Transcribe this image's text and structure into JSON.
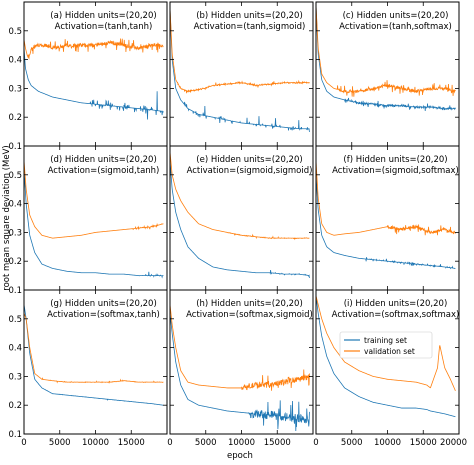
{
  "chart_data": {
    "type": "line",
    "xlabel": "epoch",
    "ylabel": "root mean square deviation (MeV)",
    "xlim": [
      0,
      20000
    ],
    "ylim": [
      0.1,
      0.6
    ],
    "x_ticks": [
      "0",
      "5000",
      "10000",
      "15000",
      "20000"
    ],
    "x_tick_values": [
      0,
      5000,
      10000,
      15000,
      20000
    ],
    "y_ticks": [
      "0.1",
      "0.2",
      "0.3",
      "0.4",
      "0.5"
    ],
    "y_tick_values": [
      0.1,
      0.2,
      0.3,
      0.4,
      0.5
    ],
    "grid": false,
    "colors": {
      "training": "#1f77b4",
      "validation": "#ff7f0e"
    },
    "legend": {
      "placement": "inside lower-right of panel (i)",
      "entries": [
        "training set",
        "validation set"
      ]
    },
    "panels": [
      {
        "label_line1": "(a) Hidden units=(20,20)",
        "label_line2": "Activation=(tanh,tanh)",
        "series": [
          {
            "name": "training set",
            "x": [
              0,
              200,
              600,
              1000,
              2000,
              3000,
              4000,
              5000,
              6000,
              7000,
              8000,
              10000,
              12000,
              14000,
              16000,
              18000,
              19500
            ],
            "y": [
              0.44,
              0.37,
              0.33,
              0.31,
              0.29,
              0.28,
              0.27,
              0.265,
              0.26,
              0.255,
              0.25,
              0.245,
              0.24,
              0.235,
              0.23,
              0.225,
              0.22
            ],
            "noise": {
              "amp": 0.07,
              "from": 9000,
              "density": 0.3
            }
          },
          {
            "name": "validation set",
            "x": [
              0,
              200,
              600,
              1000,
              2000,
              3000,
              4000,
              5000,
              6000,
              8000,
              10000,
              12000,
              14000,
              16000,
              18000,
              19500
            ],
            "y": [
              0.47,
              0.44,
              0.4,
              0.44,
              0.45,
              0.45,
              0.44,
              0.44,
              0.45,
              0.45,
              0.45,
              0.46,
              0.45,
              0.44,
              0.45,
              0.45
            ],
            "noise": {
              "amp": 0.025,
              "from": 500,
              "density": 1.0
            }
          }
        ]
      },
      {
        "label_line1": "(b) Hidden units=(20,20)",
        "label_line2": "Activation=(tanh,sigmoid)",
        "series": [
          {
            "name": "training set",
            "x": [
              0,
              300,
              800,
              1500,
              2500,
              4000,
              6000,
              8000,
              10000,
              12000,
              14000,
              16000,
              18000,
              19500
            ],
            "y": [
              0.58,
              0.4,
              0.3,
              0.26,
              0.23,
              0.21,
              0.2,
              0.19,
              0.18,
              0.175,
              0.17,
              0.165,
              0.16,
              0.16
            ],
            "noise": {
              "amp": 0.04,
              "from": 2000,
              "density": 0.15
            }
          },
          {
            "name": "validation set",
            "x": [
              0,
              300,
              800,
              1500,
              2500,
              4000,
              6000,
              8000,
              10000,
              12000,
              14000,
              16000,
              18000,
              19500
            ],
            "y": [
              0.58,
              0.42,
              0.33,
              0.3,
              0.29,
              0.295,
              0.31,
              0.315,
              0.32,
              0.31,
              0.315,
              0.32,
              0.32,
              0.32
            ],
            "noise": {
              "amp": 0.01,
              "from": 1000,
              "density": 0.6
            }
          }
        ]
      },
      {
        "label_line1": "(c) Hidden units=(20,20)",
        "label_line2": "Activation=(tanh,softmax)",
        "series": [
          {
            "name": "training set",
            "x": [
              0,
              300,
              800,
              1500,
              2500,
              4000,
              6000,
              8000,
              10000,
              12000,
              14000,
              16000,
              18000,
              19500
            ],
            "y": [
              0.59,
              0.42,
              0.33,
              0.29,
              0.27,
              0.26,
              0.25,
              0.245,
              0.24,
              0.24,
              0.235,
              0.235,
              0.23,
              0.23
            ],
            "noise": {
              "amp": 0.015,
              "from": 4000,
              "density": 0.8
            }
          },
          {
            "name": "validation set",
            "x": [
              0,
              300,
              800,
              1500,
              2500,
              4000,
              6000,
              8000,
              10000,
              12000,
              14000,
              16000,
              18000,
              19500
            ],
            "y": [
              0.59,
              0.44,
              0.35,
              0.32,
              0.3,
              0.29,
              0.29,
              0.3,
              0.31,
              0.3,
              0.29,
              0.3,
              0.3,
              0.29
            ],
            "noise": {
              "amp": 0.02,
              "from": 3000,
              "density": 1.0
            }
          }
        ]
      },
      {
        "label_line1": "(d) Hidden units=(20,20)",
        "label_line2": "Activation=(sigmoid,tanh)",
        "series": [
          {
            "name": "training set",
            "x": [
              0,
              300,
              800,
              1500,
              2500,
              4000,
              6000,
              8000,
              10000,
              12000,
              14000,
              16000,
              18000,
              19500
            ],
            "y": [
              0.52,
              0.4,
              0.29,
              0.23,
              0.19,
              0.175,
              0.165,
              0.16,
              0.16,
              0.155,
              0.155,
              0.15,
              0.15,
              0.15
            ],
            "noise": {
              "amp": 0.015,
              "from": 16000,
              "density": 0.3
            }
          },
          {
            "name": "validation set",
            "x": [
              0,
              300,
              800,
              1500,
              2500,
              4000,
              6000,
              8000,
              10000,
              12000,
              14000,
              16000,
              18000,
              19500
            ],
            "y": [
              0.55,
              0.45,
              0.36,
              0.32,
              0.29,
              0.28,
              0.285,
              0.29,
              0.3,
              0.305,
              0.31,
              0.315,
              0.32,
              0.33
            ],
            "noise": {
              "amp": 0.015,
              "from": 15000,
              "density": 0.3
            }
          }
        ]
      },
      {
        "label_line1": "(e) Hidden units=(20,20)",
        "label_line2": "Activation=(sigmoid,sigmoid)",
        "series": [
          {
            "name": "training set",
            "x": [
              0,
              300,
              800,
              1500,
              2500,
              4000,
              6000,
              8000,
              10000,
              12000,
              14000,
              16000,
              18000,
              19500
            ],
            "y": [
              0.55,
              0.45,
              0.37,
              0.31,
              0.25,
              0.21,
              0.18,
              0.17,
              0.165,
              0.16,
              0.16,
              0.155,
              0.155,
              0.15
            ],
            "noise": {
              "amp": 0.01,
              "from": 14000,
              "density": 0.2
            }
          },
          {
            "name": "validation set",
            "x": [
              0,
              300,
              800,
              1500,
              2500,
              4000,
              6000,
              8000,
              10000,
              12000,
              14000,
              16000,
              18000,
              19500
            ],
            "y": [
              0.58,
              0.5,
              0.45,
              0.41,
              0.37,
              0.33,
              0.31,
              0.3,
              0.29,
              0.285,
              0.28,
              0.28,
              0.28,
              0.28
            ],
            "noise": {
              "amp": 0.005,
              "from": 8000,
              "density": 0.4
            }
          }
        ]
      },
      {
        "label_line1": "(f) Hidden units=(20,20)",
        "label_line2": "Activation=(sigmoid,softmax)",
        "series": [
          {
            "name": "training set",
            "x": [
              0,
              300,
              800,
              1500,
              2500,
              4000,
              6000,
              8000,
              10000,
              12000,
              14000,
              16000,
              18000,
              19500
            ],
            "y": [
              0.5,
              0.38,
              0.29,
              0.25,
              0.23,
              0.22,
              0.21,
              0.205,
              0.2,
              0.195,
              0.19,
              0.185,
              0.18,
              0.175
            ],
            "noise": {
              "amp": 0.01,
              "from": 7000,
              "density": 0.3
            }
          },
          {
            "name": "validation set",
            "x": [
              0,
              300,
              800,
              1500,
              2500,
              4000,
              6000,
              8000,
              10000,
              12000,
              14000,
              16000,
              18000,
              19500
            ],
            "y": [
              0.55,
              0.42,
              0.33,
              0.3,
              0.29,
              0.295,
              0.3,
              0.31,
              0.32,
              0.31,
              0.32,
              0.3,
              0.31,
              0.3
            ],
            "noise": {
              "amp": 0.02,
              "from": 10000,
              "density": 1.0
            }
          }
        ]
      },
      {
        "label_line1": "(g) Hidden units=(20,20)",
        "label_line2": "Activation=(softmax,tanh)",
        "series": [
          {
            "name": "training set",
            "x": [
              0,
              300,
              800,
              1500,
              2500,
              4000,
              6000,
              8000,
              10000,
              12000,
              14000,
              16000,
              18000,
              19500
            ],
            "y": [
              0.55,
              0.5,
              0.38,
              0.29,
              0.26,
              0.24,
              0.235,
              0.23,
              0.225,
              0.22,
              0.215,
              0.21,
              0.205,
              0.2
            ],
            "noise": {
              "amp": 0.003,
              "from": 1000,
              "density": 0.2
            }
          },
          {
            "name": "validation set",
            "x": [
              0,
              300,
              800,
              1500,
              2500,
              4000,
              6000,
              8000,
              10000,
              12000,
              14000,
              16000,
              18000,
              19500
            ],
            "y": [
              0.52,
              0.5,
              0.4,
              0.31,
              0.29,
              0.285,
              0.28,
              0.28,
              0.28,
              0.28,
              0.285,
              0.28,
              0.28,
              0.28
            ],
            "noise": {
              "amp": 0.004,
              "from": 1000,
              "density": 0.4
            }
          }
        ]
      },
      {
        "label_line1": "(h) Hidden units=(20,20)",
        "label_line2": "Activation=(softmax,sigmoid)",
        "series": [
          {
            "name": "training set",
            "x": [
              0,
              300,
              800,
              1500,
              2500,
              4000,
              6000,
              8000,
              10000,
              12000,
              14000,
              16000,
              18000,
              19500
            ],
            "y": [
              0.52,
              0.45,
              0.35,
              0.27,
              0.22,
              0.2,
              0.19,
              0.18,
              0.175,
              0.17,
              0.165,
              0.16,
              0.155,
              0.15
            ],
            "noise": {
              "amp": 0.06,
              "from": 11000,
              "density": 0.8
            }
          },
          {
            "name": "validation set",
            "x": [
              0,
              300,
              800,
              1500,
              2500,
              4000,
              6000,
              8000,
              10000,
              12000,
              14000,
              16000,
              18000,
              19500
            ],
            "y": [
              0.55,
              0.48,
              0.4,
              0.32,
              0.28,
              0.27,
              0.265,
              0.26,
              0.26,
              0.27,
              0.27,
              0.28,
              0.29,
              0.3
            ],
            "noise": {
              "amp": 0.04,
              "from": 10000,
              "density": 1.0
            }
          }
        ]
      },
      {
        "label_line1": "(i) Hidden units=(20,20)",
        "label_line2": "Activation=(softmax,softmax)",
        "series": [
          {
            "name": "training set",
            "x": [
              0,
              300,
              800,
              1500,
              2500,
              4000,
              6000,
              8000,
              10000,
              12000,
              14000,
              15500,
              16000,
              17000,
              18000,
              19500
            ],
            "y": [
              0.58,
              0.52,
              0.44,
              0.37,
              0.31,
              0.26,
              0.23,
              0.21,
              0.2,
              0.19,
              0.19,
              0.185,
              0.18,
              0.175,
              0.17,
              0.16
            ],
            "noise": {
              "amp": 0.0,
              "from": 0,
              "density": 0.0
            }
          },
          {
            "name": "validation set",
            "x": [
              0,
              300,
              800,
              1500,
              2500,
              4000,
              6000,
              8000,
              10000,
              12000,
              14000,
              15500,
              16000,
              17000,
              17300,
              18000,
              18800,
              19500
            ],
            "y": [
              0.58,
              0.55,
              0.5,
              0.45,
              0.4,
              0.35,
              0.32,
              0.3,
              0.29,
              0.285,
              0.28,
              0.27,
              0.26,
              0.33,
              0.41,
              0.33,
              0.29,
              0.25
            ],
            "noise": {
              "amp": 0.0,
              "from": 0,
              "density": 0.0
            }
          }
        ]
      }
    ]
  }
}
